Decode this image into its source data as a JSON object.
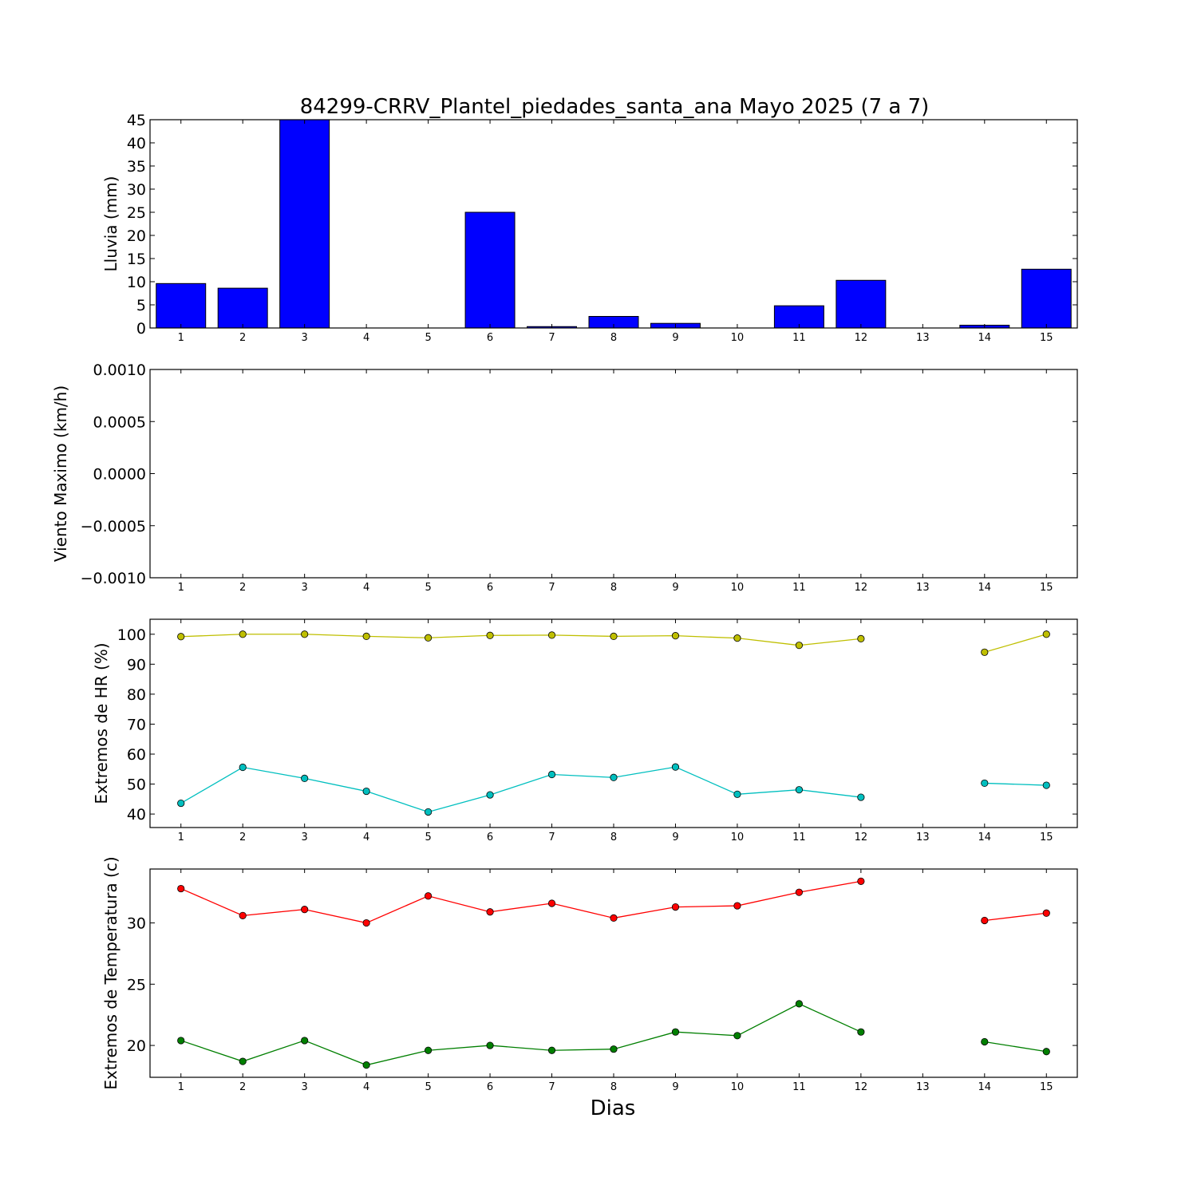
{
  "figure": {
    "title": "84299-CRRV_Plantel_piedades_santa_ana Mayo 2025  (7 a 7)",
    "xlabel": "Dias"
  },
  "chart_data": [
    {
      "type": "bar",
      "ylabel": "Lluvia (mm)",
      "ylim": [
        0,
        45
      ],
      "yticks": [
        "0",
        "5",
        "10",
        "15",
        "20",
        "25",
        "30",
        "35",
        "40",
        "45"
      ],
      "categories": [
        "1",
        "2",
        "3",
        "4",
        "5",
        "6",
        "7",
        "8",
        "9",
        "10",
        "11",
        "12",
        "13",
        "14",
        "15"
      ],
      "xlim": [
        0.5,
        15.5
      ],
      "values": [
        9.6,
        8.6,
        45.0,
        0,
        0,
        25.0,
        0.3,
        2.5,
        1.0,
        0,
        4.8,
        10.3,
        0,
        0.6,
        12.7
      ],
      "color": "#0000ff",
      "grid": false
    },
    {
      "type": "line",
      "ylabel": "Viento Maximo (km/h)",
      "ylim": [
        -0.001,
        0.001
      ],
      "yticks": [
        "−0.0010",
        "−0.0005",
        "0.0000",
        "0.0005",
        "0.0010"
      ],
      "categories": [
        "1",
        "2",
        "3",
        "4",
        "5",
        "6",
        "7",
        "8",
        "9",
        "10",
        "11",
        "12",
        "13",
        "14",
        "15"
      ],
      "xlim": [
        0.5,
        15.5
      ],
      "series": [],
      "grid": false
    },
    {
      "type": "line",
      "ylabel": "Extremos de HR (%)",
      "ylim": [
        35.5,
        105
      ],
      "yticks": [
        "40",
        "50",
        "60",
        "70",
        "80",
        "90",
        "100"
      ],
      "categories": [
        "1",
        "2",
        "3",
        "4",
        "5",
        "6",
        "7",
        "8",
        "9",
        "10",
        "11",
        "12",
        "13",
        "14",
        "15"
      ],
      "xlim": [
        0.5,
        15.5
      ],
      "series": [
        {
          "color": "#bfbf00",
          "x": [
            1,
            2,
            3,
            4,
            5,
            6,
            7,
            8,
            9,
            10,
            11,
            12,
            13,
            14,
            15
          ],
          "values": [
            99.2,
            100,
            100,
            99.3,
            98.8,
            99.6,
            99.7,
            99.3,
            99.5,
            98.7,
            96.3,
            98.5,
            null,
            94,
            100
          ]
        },
        {
          "color": "#00bfbf",
          "x": [
            1,
            2,
            3,
            4,
            5,
            6,
            7,
            8,
            9,
            10,
            11,
            12,
            13,
            14,
            15
          ],
          "values": [
            43.6,
            55.6,
            51.9,
            47.6,
            40.7,
            46.4,
            53.2,
            52.2,
            55.7,
            46.6,
            48.1,
            45.6,
            null,
            50.3,
            49.6
          ]
        }
      ],
      "grid": false
    },
    {
      "type": "line",
      "ylabel": "Extremos de Temperatura (c)",
      "ylim": [
        17.4,
        34.4
      ],
      "yticks": [
        "20",
        "25",
        "30"
      ],
      "categories": [
        "1",
        "2",
        "3",
        "4",
        "5",
        "6",
        "7",
        "8",
        "9",
        "10",
        "11",
        "12",
        "13",
        "14",
        "15"
      ],
      "xlim": [
        0.5,
        15.5
      ],
      "series": [
        {
          "color": "#ff0000",
          "x": [
            1,
            2,
            3,
            4,
            5,
            6,
            7,
            8,
            9,
            10,
            11,
            12,
            13,
            14,
            15
          ],
          "values": [
            32.8,
            30.6,
            31.1,
            30.0,
            32.2,
            30.9,
            31.6,
            30.4,
            31.3,
            31.4,
            32.5,
            33.4,
            null,
            30.2,
            30.8
          ]
        },
        {
          "color": "#007f00",
          "x": [
            1,
            2,
            3,
            4,
            5,
            6,
            7,
            8,
            9,
            10,
            11,
            12,
            13,
            14,
            15
          ],
          "values": [
            20.4,
            18.7,
            20.4,
            18.4,
            19.6,
            20.0,
            19.6,
            19.7,
            21.1,
            20.8,
            23.4,
            21.1,
            null,
            20.3,
            19.5
          ]
        }
      ],
      "grid": false
    }
  ]
}
